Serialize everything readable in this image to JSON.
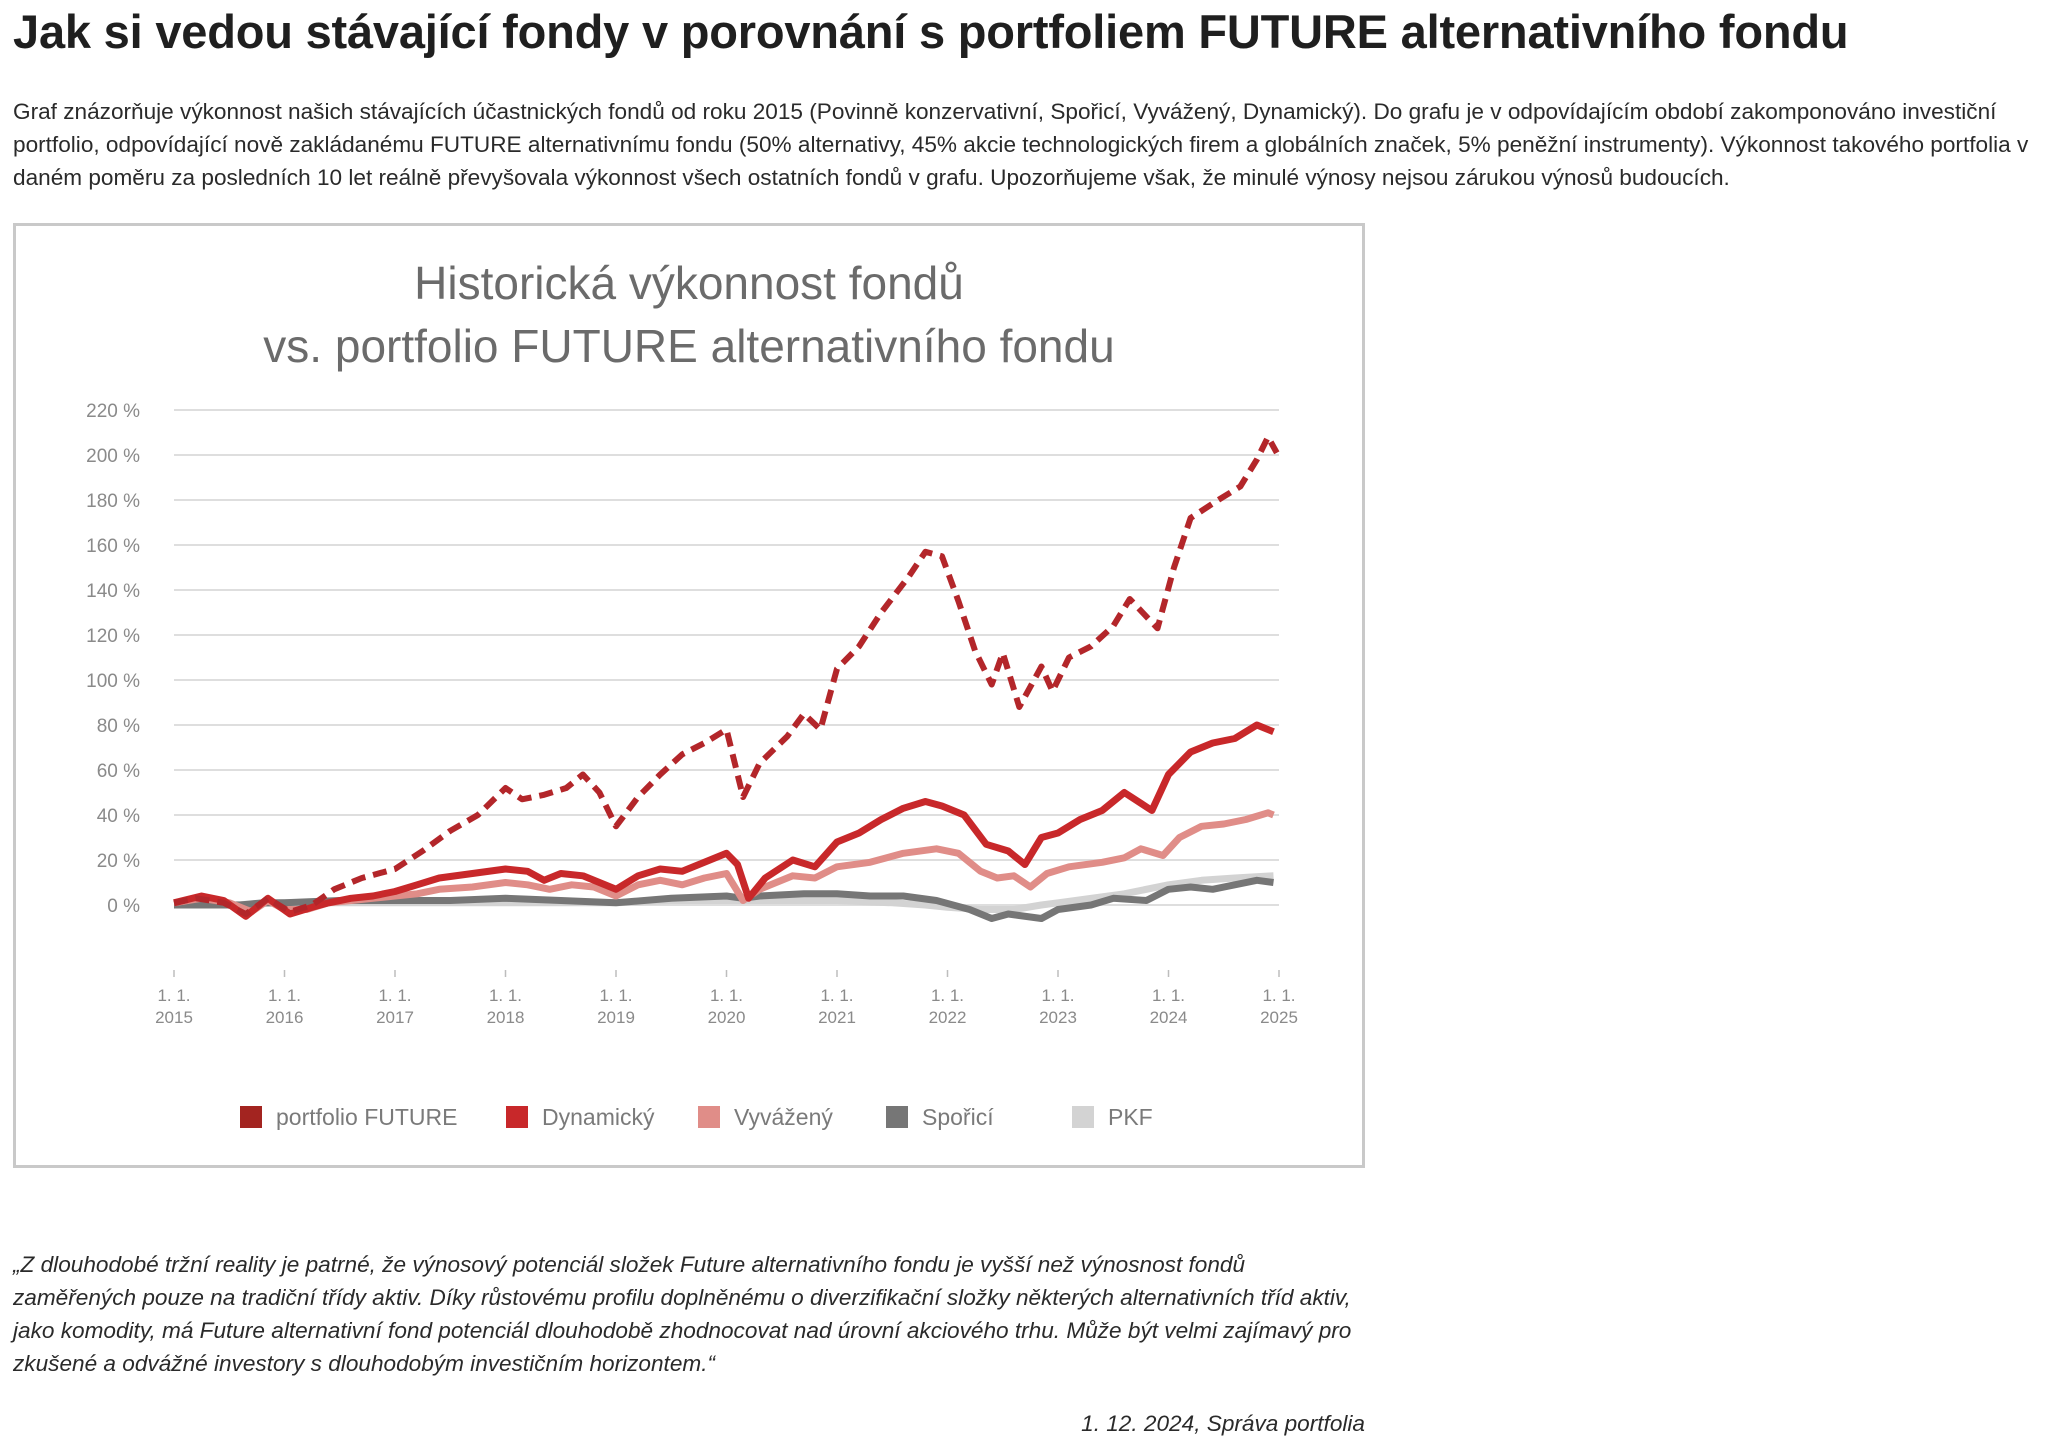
{
  "page": {
    "title": "Jak si vedou stávající fondy v porovnání s portfoliem FUTURE alternativního fondu",
    "intro": "Graf znázorňuje výkonnost našich stávajících účastnických fondů od roku 2015 (Povinně konzervativní, Spořicí, Vyvážený, Dynamický). Do grafu je v odpovídajícím období zakomponováno investiční portfolio, odpovídající nově zakládanému FUTURE alternativnímu fondu (50% alternativy, 45% akcie technologických firem a globálních značek, 5% peněžní instrumenty). Výkonnost takového portfolia v daném poměru za posledních 10 let reálně převyšovala výkonnost všech ostatních fondů v grafu. Upozorňujeme však, že minulé výnosy nejsou zárukou výnosů budoucích.",
    "quote": "„Z dlouhodobé tržní reality je patrné, že výnosový potenciál složek Future alternativního fondu je vyšší než výnosnost fondů zaměřených pouze na tradiční třídy aktiv. Díky růstovému profilu doplněnému o diverzifikační složky některých alternativních tříd aktiv, jako komodity, má Future alternativní fond potenciál dlouhodobě zhodnocovat nad úrovní akciového trhu. Může být velmi zajímavý pro zkušené a odvážné investory s dlouhodobým investičním horizontem.“",
    "quote_source": "1. 12. 2024, Správa portfolia"
  },
  "chart_data": {
    "type": "line",
    "title_lines": [
      "Historická výkonnost fondů",
      "vs. portfolio FUTURE alternativního fondu"
    ],
    "y_tick_labels": [
      "0 %",
      "20 %",
      "40 %",
      "60 %",
      "80 %",
      "100 %",
      "120 %",
      "140 %",
      "160 %",
      "180 %",
      "200 %",
      "220 %"
    ],
    "y_ticks": [
      0,
      20,
      40,
      60,
      80,
      100,
      120,
      140,
      160,
      180,
      200,
      220
    ],
    "ylim": [
      -30,
      220
    ],
    "x_ticks": [
      {
        "value": 2015,
        "line1": "1. 1.",
        "line2": "2015"
      },
      {
        "value": 2016,
        "line1": "1. 1.",
        "line2": "2016"
      },
      {
        "value": 2017,
        "line1": "1. 1.",
        "line2": "2017"
      },
      {
        "value": 2018,
        "line1": "1. 1.",
        "line2": "2018"
      },
      {
        "value": 2019,
        "line1": "1. 1.",
        "line2": "2019"
      },
      {
        "value": 2020,
        "line1": "1. 1.",
        "line2": "2020"
      },
      {
        "value": 2021,
        "line1": "1. 1.",
        "line2": "2021"
      },
      {
        "value": 2022,
        "line1": "1. 1.",
        "line2": "2022"
      },
      {
        "value": 2023,
        "line1": "1. 1.",
        "line2": "2023"
      },
      {
        "value": 2024,
        "line1": "1. 1.",
        "line2": "2024"
      },
      {
        "value": 2025,
        "line1": "1. 1.",
        "line2": "2025"
      }
    ],
    "xlim": [
      2015,
      2025
    ],
    "grid": "horizontal",
    "legend_position": "bottom",
    "series": [
      {
        "name": "PKF",
        "color": "#d3d3d3",
        "dashed": false,
        "points": [
          [
            2015.0,
            0
          ],
          [
            2015.5,
            0
          ],
          [
            2016.0,
            1
          ],
          [
            2016.5,
            1
          ],
          [
            2017.0,
            1
          ],
          [
            2017.5,
            1
          ],
          [
            2018.0,
            1
          ],
          [
            2018.5,
            1
          ],
          [
            2019.0,
            1
          ],
          [
            2019.5,
            2
          ],
          [
            2020.0,
            2
          ],
          [
            2020.5,
            2
          ],
          [
            2021.0,
            2
          ],
          [
            2021.5,
            1
          ],
          [
            2021.8,
            0
          ],
          [
            2022.0,
            -1
          ],
          [
            2022.3,
            -2
          ],
          [
            2022.6,
            -2
          ],
          [
            2022.85,
            0
          ],
          [
            2023.0,
            1
          ],
          [
            2023.3,
            3
          ],
          [
            2023.6,
            5
          ],
          [
            2024.0,
            9
          ],
          [
            2024.3,
            11
          ],
          [
            2024.6,
            12
          ],
          [
            2024.95,
            13
          ]
        ]
      },
      {
        "name": "Spořicí",
        "color": "#767676",
        "dashed": false,
        "points": [
          [
            2015.0,
            0
          ],
          [
            2015.3,
            0
          ],
          [
            2015.6,
            0
          ],
          [
            2015.8,
            1
          ],
          [
            2016.0,
            1
          ],
          [
            2016.5,
            2
          ],
          [
            2017.0,
            2
          ],
          [
            2017.5,
            2
          ],
          [
            2018.0,
            3
          ],
          [
            2018.5,
            2
          ],
          [
            2019.0,
            1
          ],
          [
            2019.5,
            3
          ],
          [
            2020.0,
            4
          ],
          [
            2020.15,
            3
          ],
          [
            2020.3,
            4
          ],
          [
            2020.7,
            5
          ],
          [
            2021.0,
            5
          ],
          [
            2021.3,
            4
          ],
          [
            2021.6,
            4
          ],
          [
            2021.9,
            2
          ],
          [
            2022.2,
            -2
          ],
          [
            2022.4,
            -6
          ],
          [
            2022.55,
            -4
          ],
          [
            2022.85,
            -6
          ],
          [
            2023.0,
            -2
          ],
          [
            2023.3,
            0
          ],
          [
            2023.5,
            3
          ],
          [
            2023.8,
            2
          ],
          [
            2024.0,
            7
          ],
          [
            2024.2,
            8
          ],
          [
            2024.4,
            7
          ],
          [
            2024.6,
            9
          ],
          [
            2024.8,
            11
          ],
          [
            2024.95,
            10
          ]
        ]
      },
      {
        "name": "Vyvážený",
        "color": "#e08d88",
        "dashed": false,
        "points": [
          [
            2015.0,
            1
          ],
          [
            2015.25,
            3
          ],
          [
            2015.5,
            1
          ],
          [
            2015.7,
            -3
          ],
          [
            2015.85,
            2
          ],
          [
            2016.0,
            -2
          ],
          [
            2016.2,
            -2
          ],
          [
            2016.4,
            1
          ],
          [
            2016.6,
            2
          ],
          [
            2016.8,
            3
          ],
          [
            2017.0,
            4
          ],
          [
            2017.2,
            5
          ],
          [
            2017.4,
            7
          ],
          [
            2017.7,
            8
          ],
          [
            2018.0,
            10
          ],
          [
            2018.2,
            9
          ],
          [
            2018.4,
            7
          ],
          [
            2018.6,
            9
          ],
          [
            2018.8,
            8
          ],
          [
            2019.0,
            4
          ],
          [
            2019.2,
            9
          ],
          [
            2019.4,
            11
          ],
          [
            2019.6,
            9
          ],
          [
            2019.8,
            12
          ],
          [
            2020.0,
            14
          ],
          [
            2020.15,
            2
          ],
          [
            2020.3,
            7
          ],
          [
            2020.6,
            13
          ],
          [
            2020.8,
            12
          ],
          [
            2021.0,
            17
          ],
          [
            2021.3,
            19
          ],
          [
            2021.6,
            23
          ],
          [
            2021.9,
            25
          ],
          [
            2022.1,
            23
          ],
          [
            2022.3,
            15
          ],
          [
            2022.45,
            12
          ],
          [
            2022.6,
            13
          ],
          [
            2022.75,
            8
          ],
          [
            2022.9,
            14
          ],
          [
            2023.1,
            17
          ],
          [
            2023.4,
            19
          ],
          [
            2023.6,
            21
          ],
          [
            2023.75,
            25
          ],
          [
            2023.95,
            22
          ],
          [
            2024.1,
            30
          ],
          [
            2024.3,
            35
          ],
          [
            2024.5,
            36
          ],
          [
            2024.7,
            38
          ],
          [
            2024.9,
            41
          ],
          [
            2024.95,
            40
          ]
        ]
      },
      {
        "name": "Dynamický",
        "color": "#c8282a",
        "dashed": false,
        "points": [
          [
            2015.0,
            1
          ],
          [
            2015.25,
            4
          ],
          [
            2015.45,
            2
          ],
          [
            2015.65,
            -5
          ],
          [
            2015.85,
            3
          ],
          [
            2016.05,
            -4
          ],
          [
            2016.25,
            -1
          ],
          [
            2016.4,
            1
          ],
          [
            2016.6,
            3
          ],
          [
            2016.8,
            4
          ],
          [
            2017.0,
            6
          ],
          [
            2017.2,
            9
          ],
          [
            2017.4,
            12
          ],
          [
            2017.7,
            14
          ],
          [
            2018.0,
            16
          ],
          [
            2018.2,
            15
          ],
          [
            2018.35,
            11
          ],
          [
            2018.5,
            14
          ],
          [
            2018.7,
            13
          ],
          [
            2019.0,
            7
          ],
          [
            2019.2,
            13
          ],
          [
            2019.4,
            16
          ],
          [
            2019.6,
            15
          ],
          [
            2019.8,
            19
          ],
          [
            2020.0,
            23
          ],
          [
            2020.1,
            18
          ],
          [
            2020.2,
            3
          ],
          [
            2020.35,
            12
          ],
          [
            2020.6,
            20
          ],
          [
            2020.8,
            17
          ],
          [
            2021.0,
            28
          ],
          [
            2021.2,
            32
          ],
          [
            2021.4,
            38
          ],
          [
            2021.6,
            43
          ],
          [
            2021.8,
            46
          ],
          [
            2021.95,
            44
          ],
          [
            2022.15,
            40
          ],
          [
            2022.35,
            27
          ],
          [
            2022.55,
            24
          ],
          [
            2022.7,
            18
          ],
          [
            2022.85,
            30
          ],
          [
            2023.0,
            32
          ],
          [
            2023.2,
            38
          ],
          [
            2023.4,
            42
          ],
          [
            2023.6,
            50
          ],
          [
            2023.85,
            42
          ],
          [
            2024.0,
            58
          ],
          [
            2024.2,
            68
          ],
          [
            2024.4,
            72
          ],
          [
            2024.6,
            74
          ],
          [
            2024.8,
            80
          ],
          [
            2024.95,
            77
          ]
        ]
      },
      {
        "name": "portfolio FUTURE",
        "color": "#b3262a",
        "dashed": true,
        "points": [
          [
            2015.0,
            1
          ],
          [
            2015.2,
            3
          ],
          [
            2015.45,
            1
          ],
          [
            2015.65,
            -4
          ],
          [
            2015.85,
            3
          ],
          [
            2016.05,
            -3
          ],
          [
            2016.25,
            0
          ],
          [
            2016.45,
            7
          ],
          [
            2016.7,
            12
          ],
          [
            2017.0,
            16
          ],
          [
            2017.25,
            24
          ],
          [
            2017.5,
            33
          ],
          [
            2017.75,
            40
          ],
          [
            2018.0,
            52
          ],
          [
            2018.15,
            47
          ],
          [
            2018.35,
            49
          ],
          [
            2018.55,
            52
          ],
          [
            2018.7,
            58
          ],
          [
            2018.85,
            50
          ],
          [
            2019.0,
            35
          ],
          [
            2019.2,
            48
          ],
          [
            2019.4,
            58
          ],
          [
            2019.6,
            67
          ],
          [
            2019.8,
            72
          ],
          [
            2020.0,
            78
          ],
          [
            2020.15,
            48
          ],
          [
            2020.3,
            63
          ],
          [
            2020.55,
            75
          ],
          [
            2020.7,
            85
          ],
          [
            2020.85,
            78
          ],
          [
            2021.0,
            105
          ],
          [
            2021.2,
            115
          ],
          [
            2021.4,
            130
          ],
          [
            2021.65,
            146
          ],
          [
            2021.8,
            157
          ],
          [
            2021.95,
            155
          ],
          [
            2022.1,
            135
          ],
          [
            2022.25,
            113
          ],
          [
            2022.4,
            98
          ],
          [
            2022.5,
            112
          ],
          [
            2022.65,
            88
          ],
          [
            2022.85,
            106
          ],
          [
            2022.95,
            95
          ],
          [
            2023.1,
            110
          ],
          [
            2023.3,
            115
          ],
          [
            2023.5,
            124
          ],
          [
            2023.65,
            136
          ],
          [
            2023.9,
            123
          ],
          [
            2024.05,
            150
          ],
          [
            2024.2,
            172
          ],
          [
            2024.45,
            180
          ],
          [
            2024.65,
            186
          ],
          [
            2024.8,
            198
          ],
          [
            2024.9,
            208
          ],
          [
            2024.98,
            201
          ]
        ]
      }
    ],
    "legend": [
      {
        "label": "portfolio FUTURE",
        "color": "#a32420"
      },
      {
        "label": "Dynamický",
        "color": "#c8282a"
      },
      {
        "label": "Vyvážený",
        "color": "#e08d88"
      },
      {
        "label": "Spořicí",
        "color": "#767676"
      },
      {
        "label": "PKF",
        "color": "#d3d3d3"
      }
    ]
  }
}
